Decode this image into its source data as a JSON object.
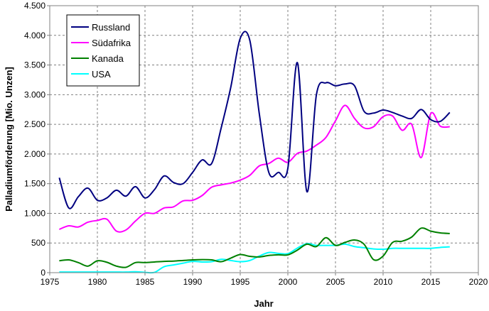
{
  "chart_data": {
    "type": "line",
    "title": "",
    "xlabel": "Jahr",
    "ylabel": "Palladiumförderung  [Mio. Unzen]",
    "xlim": [
      1975,
      2020
    ],
    "ylim": [
      0,
      4500
    ],
    "x_ticks": [
      1975,
      1980,
      1985,
      1990,
      1995,
      2000,
      2005,
      2010,
      2015,
      2020
    ],
    "y_ticks": [
      0,
      500,
      1000,
      1500,
      2000,
      2500,
      3000,
      3500,
      4000,
      4500
    ],
    "y_tick_labels": [
      "0",
      "500",
      "1.000",
      "1.500",
      "2.000",
      "2.500",
      "3.000",
      "3.500",
      "4.000",
      "4.500"
    ],
    "grid": true,
    "legend_position": "top-left",
    "x": [
      1976,
      1977,
      1978,
      1979,
      1980,
      1981,
      1982,
      1983,
      1984,
      1985,
      1986,
      1987,
      1988,
      1989,
      1990,
      1991,
      1992,
      1993,
      1994,
      1995,
      1996,
      1997,
      1998,
      1999,
      2000,
      2001,
      2002,
      2003,
      2004,
      2005,
      2006,
      2007,
      2008,
      2009,
      2010,
      2011,
      2012,
      2013,
      2014,
      2015,
      2016,
      2017
    ],
    "series": [
      {
        "name": "Russland",
        "color": "#000080",
        "values": [
          1600,
          1090,
          1280,
          1425,
          1220,
          1260,
          1390,
          1290,
          1450,
          1260,
          1400,
          1630,
          1520,
          1500,
          1690,
          1900,
          1840,
          2440,
          3120,
          3950,
          3920,
          2680,
          1690,
          1690,
          1760,
          3540,
          1365,
          3000,
          3200,
          3150,
          3180,
          3150,
          2720,
          2690,
          2740,
          2700,
          2640,
          2600,
          2750,
          2580,
          2550,
          2700
        ]
      },
      {
        "name": "Südafrika",
        "color": "#ff00ff",
        "values": [
          730,
          790,
          770,
          850,
          880,
          900,
          700,
          720,
          870,
          1000,
          1000,
          1090,
          1110,
          1210,
          1220,
          1300,
          1440,
          1480,
          1510,
          1560,
          1640,
          1800,
          1840,
          1930,
          1860,
          2010,
          2050,
          2150,
          2280,
          2560,
          2820,
          2600,
          2440,
          2460,
          2630,
          2640,
          2400,
          2500,
          1940,
          2680,
          2470,
          2460
        ]
      },
      {
        "name": "Kanada",
        "color": "#008000",
        "values": [
          200,
          215,
          170,
          110,
          200,
          175,
          110,
          90,
          170,
          170,
          180,
          190,
          195,
          205,
          215,
          220,
          215,
          185,
          245,
          305,
          275,
          265,
          290,
          300,
          300,
          380,
          480,
          440,
          590,
          460,
          510,
          550,
          480,
          220,
          280,
          510,
          530,
          600,
          750,
          700,
          670,
          660
        ]
      },
      {
        "name": "USA",
        "color": "#00ffff",
        "values": [
          10,
          10,
          10,
          10,
          10,
          10,
          10,
          10,
          15,
          5,
          5,
          100,
          130,
          160,
          190,
          180,
          185,
          225,
          205,
          185,
          205,
          280,
          340,
          325,
          320,
          415,
          490,
          460,
          460,
          460,
          480,
          440,
          420,
          400,
          395,
          410,
          410,
          410,
          410,
          410,
          425,
          435
        ]
      }
    ]
  }
}
